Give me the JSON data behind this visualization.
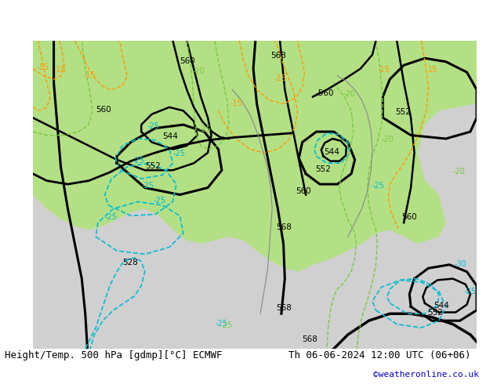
{
  "title_left": "Height/Temp. 500 hPa [gdmp][°C] ECMWF",
  "title_right": "Th 06-06-2024 12:00 UTC (06+06)",
  "credit": "©weatheronline.co.uk",
  "bg_color_land": "#b3e085",
  "bg_color_sea": "#d8d8d8",
  "bg_color_frame": "#ffffff",
  "contour_z_color": "#000000",
  "contour_t_neg_color": "#00bcd4",
  "contour_t_pos_color": "#a0c840",
  "contour_t_orange_color": "#ff9900",
  "label_fontsize": 8,
  "title_fontsize": 9,
  "credit_fontsize": 8
}
